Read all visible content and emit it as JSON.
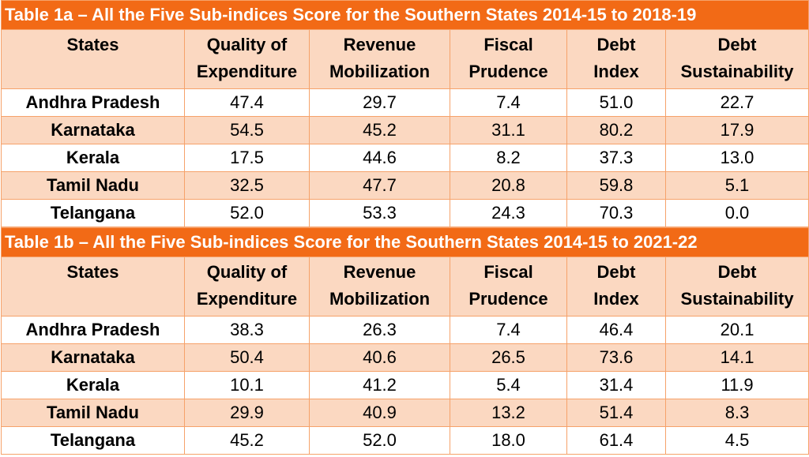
{
  "tables": [
    {
      "title": "Table 1a – All the Five Sub-indices Score for the Southern States 2014-15 to 2018-19",
      "headers": [
        [
          "States"
        ],
        [
          "Quality of",
          "Expenditure"
        ],
        [
          "Revenue",
          "Mobilization"
        ],
        [
          "Fiscal",
          "Prudence"
        ],
        [
          "Debt",
          "Index"
        ],
        [
          "Debt",
          "Sustainability"
        ]
      ],
      "rows": [
        [
          "Andhra Pradesh",
          "47.4",
          "29.7",
          "7.4",
          "51.0",
          "22.7"
        ],
        [
          "Karnataka",
          "54.5",
          "45.2",
          "31.1",
          "80.2",
          "17.9"
        ],
        [
          "Kerala",
          "17.5",
          "44.6",
          "8.2",
          "37.3",
          "13.0"
        ],
        [
          "Tamil Nadu",
          "32.5",
          "47.7",
          "20.8",
          "59.8",
          "5.1"
        ],
        [
          "Telangana",
          "52.0",
          "53.3",
          "24.3",
          "70.3",
          "0.0"
        ]
      ]
    },
    {
      "title": "Table 1b – All the Five Sub-indices Score for the Southern States 2014-15 to 2021-22",
      "headers": [
        [
          "States"
        ],
        [
          "Quality of",
          "Expenditure"
        ],
        [
          "Revenue",
          "Mobilization"
        ],
        [
          "Fiscal",
          "Prudence"
        ],
        [
          "Debt",
          "Index"
        ],
        [
          "Debt",
          "Sustainability"
        ]
      ],
      "rows": [
        [
          "Andhra Pradesh",
          "38.3",
          "26.3",
          "7.4",
          "46.4",
          "20.1"
        ],
        [
          "Karnataka",
          "50.4",
          "40.6",
          "26.5",
          "73.6",
          "14.1"
        ],
        [
          "Kerala",
          "10.1",
          "41.2",
          "5.4",
          "31.4",
          "11.9"
        ],
        [
          "Tamil Nadu",
          "29.9",
          "40.9",
          "13.2",
          "51.4",
          "8.3"
        ],
        [
          "Telangana",
          "45.2",
          "52.0",
          "18.0",
          "61.4",
          "4.5"
        ]
      ]
    }
  ],
  "colors": {
    "title_bg": "#f26a16",
    "band_bg": "#fbd8c1",
    "border": "#f6a26a"
  }
}
